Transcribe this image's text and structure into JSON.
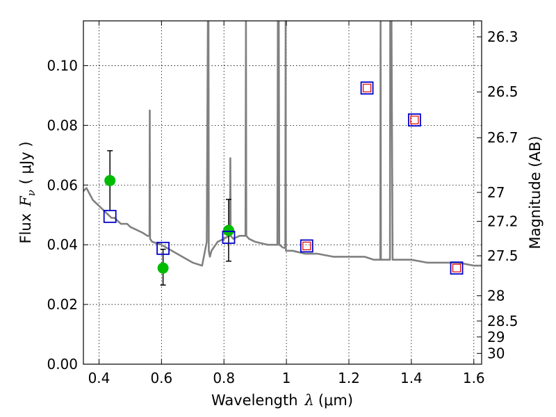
{
  "chart_data": {
    "type": "line",
    "title": "",
    "xlabel": "Wavelength",
    "xlabel_symbol": "λ",
    "xlabel_unit": "(μm)",
    "ylabel": "Flux",
    "ylabel_symbol": "F",
    "ylabel_subscript": "ν",
    "ylabel_unit": "( μJy )",
    "y2label": "Magnitude (AB)",
    "xlim": [
      0.35,
      1.625
    ],
    "ylim": [
      0.0,
      0.115
    ],
    "grid": true,
    "x_ticks": [
      0.4,
      0.6,
      0.8,
      1.0,
      1.2,
      1.4,
      1.6
    ],
    "x_tick_labels": [
      "0.4",
      "0.6",
      "0.8",
      "1",
      "1.2",
      "1.4",
      "1.6"
    ],
    "y_ticks": [
      0.0,
      0.02,
      0.04,
      0.06,
      0.08,
      0.1
    ],
    "y_tick_labels": [
      "0.00",
      "0.02",
      "0.04",
      "0.06",
      "0.08",
      "0.10"
    ],
    "y2_tick_labels": [
      "26.3",
      "26.5",
      "26.7",
      "27",
      "27.2",
      "27.5",
      "28",
      "28.5",
      "29",
      "30"
    ],
    "y2_tick_mags": [
      26.3,
      26.5,
      26.7,
      27.0,
      27.2,
      27.5,
      28.0,
      28.5,
      29.0,
      30.0
    ],
    "series": [
      {
        "name": "model-sed",
        "kind": "line",
        "color": "#808080",
        "x": [
          0.35,
          0.36,
          0.37,
          0.38,
          0.39,
          0.4,
          0.41,
          0.42,
          0.43,
          0.44,
          0.45,
          0.46,
          0.47,
          0.48,
          0.49,
          0.5,
          0.52,
          0.54,
          0.555,
          0.5615,
          0.5625,
          0.5635,
          0.57,
          0.6,
          0.65,
          0.7,
          0.73,
          0.745,
          0.7485,
          0.7495,
          0.7505,
          0.7515,
          0.755,
          0.76,
          0.78,
          0.8,
          0.815,
          0.8195,
          0.8205,
          0.8215,
          0.83,
          0.85,
          0.869,
          0.8705,
          0.8715,
          0.88,
          0.9,
          0.94,
          0.971,
          0.9725,
          0.9755,
          0.977,
          0.99,
          0.9965,
          0.9975,
          0.9985,
          1.0,
          1.02,
          1.06,
          1.1,
          1.15,
          1.2,
          1.25,
          1.28,
          1.3005,
          1.3015,
          1.3025,
          1.3,
          1.32,
          1.3315,
          1.3325,
          1.3335,
          1.3345,
          1.3355,
          1.3365,
          1.34,
          1.345,
          1.35,
          1.4,
          1.45,
          1.5,
          1.55,
          1.6,
          1.625
        ],
        "y": [
          0.058,
          0.059,
          0.057,
          0.055,
          0.054,
          0.053,
          0.052,
          0.051,
          0.05,
          0.049,
          0.049,
          0.048,
          0.047,
          0.047,
          0.047,
          0.046,
          0.045,
          0.044,
          0.043,
          0.043,
          0.085,
          0.042,
          0.041,
          0.04,
          0.037,
          0.034,
          0.033,
          0.041,
          0.115,
          0.115,
          0.115,
          0.038,
          0.036,
          0.038,
          0.041,
          0.042,
          0.043,
          0.043,
          0.069,
          0.043,
          0.042,
          0.043,
          0.043,
          0.115,
          0.043,
          0.042,
          0.041,
          0.04,
          0.04,
          0.115,
          0.115,
          0.04,
          0.039,
          0.039,
          0.115,
          0.038,
          0.038,
          0.038,
          0.037,
          0.037,
          0.036,
          0.036,
          0.036,
          0.035,
          0.035,
          0.115,
          0.035,
          0.035,
          0.035,
          0.035,
          0.115,
          0.115,
          0.115,
          0.115,
          0.115,
          0.035,
          0.035,
          0.035,
          0.035,
          0.034,
          0.034,
          0.034,
          0.033,
          0.033
        ]
      },
      {
        "name": "observed-flux",
        "kind": "points-with-errors",
        "color": "#00bb00",
        "x": [
          0.435,
          0.605,
          0.815
        ],
        "y": [
          0.0615,
          0.0322,
          0.0448
        ],
        "yerr_low": [
          0.0515,
          0.0265,
          0.0345
        ],
        "yerr_high": [
          0.0715,
          0.0385,
          0.0552
        ]
      },
      {
        "name": "model-bandpass-flux",
        "kind": "open-squares",
        "color": "#0000cc",
        "x": [
          0.435,
          0.605,
          0.815,
          1.065,
          1.258,
          1.41,
          1.545
        ],
        "y": [
          0.0495,
          0.0388,
          0.0425,
          0.0396,
          0.0925,
          0.0818,
          0.0322
        ]
      },
      {
        "name": "model-bandpass-flux-inner",
        "kind": "small-open-squares",
        "color": "#dd0000",
        "x": [
          1.065,
          1.258,
          1.41,
          1.545
        ],
        "y": [
          0.0396,
          0.0925,
          0.0818,
          0.0322
        ]
      }
    ]
  },
  "colors": {
    "axes": "#000000",
    "grid": "#000000",
    "background": "#ffffff"
  }
}
